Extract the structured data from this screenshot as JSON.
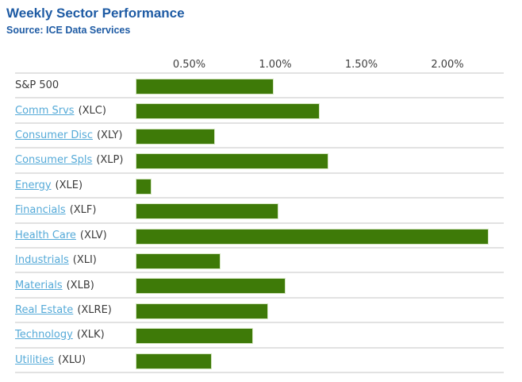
{
  "header": {
    "title": "Weekly Sector Performance",
    "source": "Source: ICE Data Services"
  },
  "colors": {
    "heading_blue": "#1e5ba4",
    "link_blue": "#55aad8",
    "bar_green": "#3e7a08",
    "bar_border": "#d4e6c0",
    "grid_gray": "#e2e2e2",
    "text_dark": "#3b3b3b"
  },
  "chart_data": {
    "type": "bar",
    "orientation": "horizontal",
    "title": "Weekly Sector Performance",
    "source": "Source: ICE Data Services",
    "unit": "%",
    "grid": false,
    "legend": false,
    "xlim": [
      -0.5,
      2.35
    ],
    "x_tick_labels": [
      "0.50%",
      "1.00%",
      "1.50%",
      "2.00%"
    ],
    "x_tick_values": [
      0.5,
      1.0,
      1.5,
      2.0
    ],
    "rows": [
      {
        "label": "S&P 500",
        "ticker": "",
        "is_link": false,
        "value": 0.99
      },
      {
        "label": "Comm Srvs",
        "ticker": "(XLC)",
        "is_link": true,
        "value": 1.26
      },
      {
        "label": "Consumer Disc",
        "ticker": "(XLY)",
        "is_link": true,
        "value": 0.65
      },
      {
        "label": "Consumer Spls",
        "ticker": "(XLP)",
        "is_link": true,
        "value": 1.31
      },
      {
        "label": "Energy",
        "ticker": "(XLE)",
        "is_link": true,
        "value": 0.28
      },
      {
        "label": "Financials",
        "ticker": "(XLF)",
        "is_link": true,
        "value": 1.02
      },
      {
        "label": "Health Care",
        "ticker": "(XLV)",
        "is_link": true,
        "value": 2.24
      },
      {
        "label": "Industrials",
        "ticker": "(XLI)",
        "is_link": true,
        "value": 0.68
      },
      {
        "label": "Materials",
        "ticker": "(XLB)",
        "is_link": true,
        "value": 1.06
      },
      {
        "label": "Real Estate",
        "ticker": "(XLRE)",
        "is_link": true,
        "value": 0.96
      },
      {
        "label": "Technology",
        "ticker": "(XLK)",
        "is_link": true,
        "value": 0.87
      },
      {
        "label": "Utilities",
        "ticker": "(XLU)",
        "is_link": true,
        "value": 0.63
      }
    ]
  }
}
